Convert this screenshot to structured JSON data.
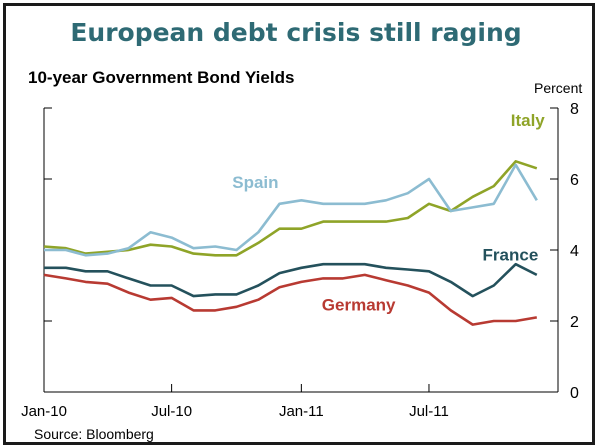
{
  "title": "European debt crisis still raging",
  "subtitle": "10-year Government Bond Yields",
  "unit_label": "Percent",
  "source": "Source: Bloomberg",
  "colors": {
    "title": "#2e6a74",
    "italy": "#8fa428",
    "spain": "#8cbcd1",
    "france": "#24515c",
    "germany": "#b83a32"
  },
  "chart_data": {
    "type": "line",
    "title": "European debt crisis still raging",
    "subtitle": "10-year Government Bond Yields",
    "ylabel": "Percent",
    "xlim": [
      "2010-01-01",
      "2011-12-31"
    ],
    "ylim": [
      0,
      8
    ],
    "yticks": [
      0,
      2,
      4,
      6,
      8
    ],
    "xtick_labels": [
      "Jan-10",
      "Jul-10",
      "Jan-11",
      "Jul-11"
    ],
    "xtick_dates": [
      "2010-01-01",
      "2010-07-01",
      "2011-01-01",
      "2011-07-01"
    ],
    "x": [
      "2010-01-01",
      "2010-02-01",
      "2010-03-01",
      "2010-04-01",
      "2010-05-01",
      "2010-06-01",
      "2010-07-01",
      "2010-08-01",
      "2010-09-01",
      "2010-10-01",
      "2010-11-01",
      "2010-12-01",
      "2011-01-01",
      "2011-02-01",
      "2011-03-01",
      "2011-04-01",
      "2011-05-01",
      "2011-06-01",
      "2011-07-01",
      "2011-08-01",
      "2011-09-01",
      "2011-10-01",
      "2011-11-01",
      "2011-12-01"
    ],
    "series": [
      {
        "name": "Italy",
        "color": "#8fa428",
        "values": [
          4.1,
          4.05,
          3.9,
          3.95,
          4.0,
          4.15,
          4.1,
          3.9,
          3.85,
          3.85,
          4.2,
          4.6,
          4.6,
          4.8,
          4.8,
          4.8,
          4.8,
          4.9,
          5.3,
          5.1,
          5.5,
          5.8,
          6.5,
          6.3
        ]
      },
      {
        "name": "Spain",
        "color": "#8cbcd1",
        "values": [
          4.0,
          4.0,
          3.85,
          3.9,
          4.05,
          4.5,
          4.35,
          4.05,
          4.1,
          4.0,
          4.5,
          5.3,
          5.4,
          5.3,
          5.3,
          5.3,
          5.4,
          5.6,
          6.0,
          5.1,
          5.2,
          5.3,
          6.4,
          5.4
        ]
      },
      {
        "name": "France",
        "color": "#24515c",
        "values": [
          3.5,
          3.5,
          3.4,
          3.4,
          3.2,
          3.0,
          3.0,
          2.7,
          2.75,
          2.75,
          3.0,
          3.35,
          3.5,
          3.6,
          3.6,
          3.6,
          3.5,
          3.45,
          3.4,
          3.1,
          2.7,
          3.0,
          3.6,
          3.3
        ]
      },
      {
        "name": "Germany",
        "color": "#b83a32",
        "values": [
          3.3,
          3.2,
          3.1,
          3.05,
          2.8,
          2.6,
          2.65,
          2.3,
          2.3,
          2.4,
          2.6,
          2.95,
          3.1,
          3.2,
          3.2,
          3.3,
          3.15,
          3.0,
          2.8,
          2.3,
          1.9,
          2.0,
          2.0,
          2.1
        ]
      }
    ],
    "grid": false,
    "legend": "inline labels"
  }
}
